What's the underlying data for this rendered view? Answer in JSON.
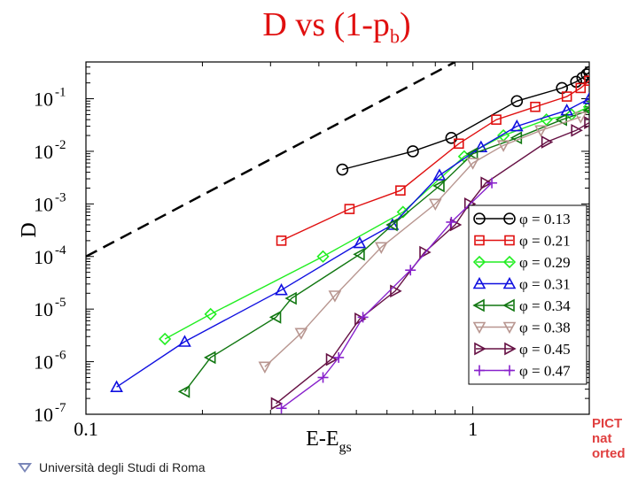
{
  "title": {
    "main": "D  vs (1-p",
    "sub": "b",
    "close": ")"
  },
  "footer": {
    "institution": "Università degli Studi di Roma"
  },
  "side_note": [
    "PICT",
    "nat",
    "orted"
  ],
  "chart_data": {
    "type": "line",
    "xscale": "log",
    "yscale": "log",
    "xlim": [
      0.1,
      2.0
    ],
    "ylim": [
      1e-07,
      0.5
    ],
    "xlabel": "E-E",
    "xlabel_sub": "gs",
    "ylabel": "D",
    "x_ticks": [
      {
        "v": 0.1,
        "label": "0.1"
      },
      {
        "v": 1,
        "label": "1"
      }
    ],
    "y_ticks": [
      {
        "v": 1e-07,
        "label": "10",
        "exp": "-7"
      },
      {
        "v": 1e-06,
        "label": "10",
        "exp": "-6"
      },
      {
        "v": 1e-05,
        "label": "10",
        "exp": "-5"
      },
      {
        "v": 0.0001,
        "label": "10",
        "exp": "-4"
      },
      {
        "v": 0.001,
        "label": "10",
        "exp": "-3"
      },
      {
        "v": 0.01,
        "label": "10",
        "exp": "-2"
      },
      {
        "v": 0.1,
        "label": "10",
        "exp": "-1"
      }
    ],
    "reference_line": {
      "style": "dashed",
      "color": "#000000",
      "points": [
        [
          0.1,
          0.0001
        ],
        [
          0.9,
          0.5
        ]
      ]
    },
    "legend_position": "lower-right",
    "series": [
      {
        "name": "φ = 0.13",
        "color": "#000000",
        "marker": "circle",
        "points": [
          [
            0.46,
            0.0045
          ],
          [
            0.7,
            0.01
          ],
          [
            0.88,
            0.018
          ],
          [
            1.3,
            0.09
          ],
          [
            1.7,
            0.16
          ],
          [
            1.85,
            0.21
          ],
          [
            1.92,
            0.25
          ],
          [
            1.97,
            0.29
          ],
          [
            2.0,
            0.32
          ]
        ]
      },
      {
        "name": "φ = 0.21",
        "color": "#e01010",
        "marker": "square",
        "points": [
          [
            0.32,
            0.0002
          ],
          [
            0.48,
            0.0008
          ],
          [
            0.65,
            0.0018
          ],
          [
            0.92,
            0.014
          ],
          [
            1.15,
            0.04
          ],
          [
            1.45,
            0.07
          ],
          [
            1.75,
            0.11
          ],
          [
            1.9,
            0.16
          ],
          [
            2.0,
            0.22
          ]
        ]
      },
      {
        "name": "φ = 0.29",
        "color": "#22ee22",
        "marker": "diamond",
        "points": [
          [
            0.16,
            2.7e-06
          ],
          [
            0.21,
            8e-06
          ],
          [
            0.41,
            0.0001
          ],
          [
            0.66,
            0.0007
          ],
          [
            0.95,
            0.008
          ],
          [
            1.2,
            0.02
          ],
          [
            1.55,
            0.04
          ],
          [
            1.8,
            0.05
          ],
          [
            2.0,
            0.07
          ]
        ]
      },
      {
        "name": "φ = 0.31",
        "color": "#1010e0",
        "marker": "triangle-up",
        "points": [
          [
            0.12,
            3.3e-07
          ],
          [
            0.18,
            2.4e-06
          ],
          [
            0.32,
            2.3e-05
          ],
          [
            0.51,
            0.00018
          ],
          [
            0.62,
            0.0004
          ],
          [
            0.82,
            0.0035
          ],
          [
            1.05,
            0.012
          ],
          [
            1.3,
            0.03
          ],
          [
            1.75,
            0.06
          ],
          [
            2.0,
            0.1
          ]
        ]
      },
      {
        "name": "φ = 0.34",
        "color": "#117711",
        "marker": "triangle-left",
        "points": [
          [
            0.18,
            2.7e-07
          ],
          [
            0.21,
            1.2e-06
          ],
          [
            0.31,
            7e-06
          ],
          [
            0.34,
            1.6e-05
          ],
          [
            0.51,
            0.00011
          ],
          [
            0.62,
            0.0004
          ],
          [
            0.82,
            0.0022
          ],
          [
            1.0,
            0.009
          ],
          [
            1.3,
            0.018
          ],
          [
            1.7,
            0.04
          ],
          [
            2.0,
            0.06
          ]
        ]
      },
      {
        "name": "φ = 0.38",
        "color": "#b89690",
        "marker": "triangle-down",
        "points": [
          [
            0.29,
            8e-07
          ],
          [
            0.36,
            3.5e-06
          ],
          [
            0.44,
            1.8e-05
          ],
          [
            0.58,
            0.00015
          ],
          [
            0.8,
            0.001
          ],
          [
            1.0,
            0.006
          ],
          [
            1.2,
            0.013
          ],
          [
            1.5,
            0.025
          ],
          [
            1.9,
            0.045
          ]
        ]
      },
      {
        "name": "φ = 0.45",
        "color": "#661144",
        "marker": "triangle-right",
        "points": [
          [
            0.31,
            1.6e-07
          ],
          [
            0.43,
            1.1e-06
          ],
          [
            0.51,
            6.5e-06
          ],
          [
            0.63,
            2.2e-05
          ],
          [
            0.75,
            0.00012
          ],
          [
            0.9,
            0.0004
          ],
          [
            0.98,
            0.001
          ],
          [
            1.08,
            0.0025
          ],
          [
            1.55,
            0.015
          ],
          [
            1.85,
            0.025
          ],
          [
            2.0,
            0.035
          ]
        ]
      },
      {
        "name": "φ = 0.47",
        "color": "#8822cc",
        "marker": "plus",
        "points": [
          [
            0.32,
            1.3e-07
          ],
          [
            0.41,
            5e-07
          ],
          [
            0.45,
            1.2e-06
          ],
          [
            0.52,
            7e-06
          ],
          [
            0.69,
            5.5e-05
          ],
          [
            0.88,
            0.00045
          ],
          [
            1.12,
            0.0025
          ]
        ]
      }
    ]
  }
}
